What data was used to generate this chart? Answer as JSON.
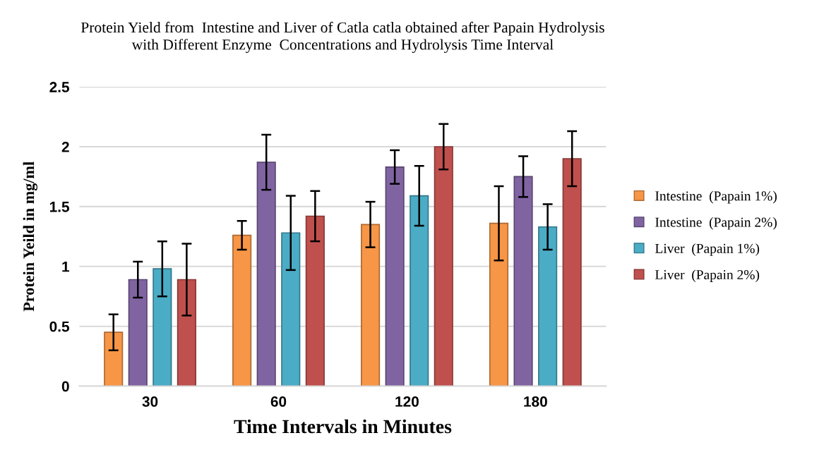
{
  "chart_data": {
    "type": "bar",
    "title": "Protein Yield from  Intestine and Liver of Catla catla obtained after Papain Hydrolysis\nwith Different Enzyme  Concentrations and Hydrolysis Time Interval",
    "xlabel": "Time Intervals in Minutes",
    "ylabel": "Protein Yeild in mg/ml",
    "categories": [
      "30",
      "60",
      "120",
      "180"
    ],
    "series": [
      {
        "name": "Intestine  (Papain 1%)",
        "color": "#f79646",
        "values": [
          0.45,
          1.26,
          1.35,
          1.36
        ],
        "errors": [
          0.15,
          0.12,
          0.19,
          0.31
        ]
      },
      {
        "name": "Intestine  (Papain 2%)",
        "color": "#8064a2",
        "values": [
          0.89,
          1.87,
          1.83,
          1.75
        ],
        "errors": [
          0.15,
          0.23,
          0.14,
          0.17
        ]
      },
      {
        "name": "Liver  (Papain 1%)",
        "color": "#4bacc6",
        "values": [
          0.98,
          1.28,
          1.59,
          1.33
        ],
        "errors": [
          0.23,
          0.31,
          0.25,
          0.19
        ]
      },
      {
        "name": "Liver  (Papain 2%)",
        "color": "#c0504d",
        "values": [
          0.89,
          1.42,
          2.0,
          1.9
        ],
        "errors": [
          0.3,
          0.21,
          0.19,
          0.23
        ]
      }
    ],
    "ylim": [
      0,
      2.5
    ],
    "yticks": [
      0,
      0.5,
      1,
      1.5,
      2,
      2.5
    ],
    "grid": "y",
    "legend": "right"
  }
}
